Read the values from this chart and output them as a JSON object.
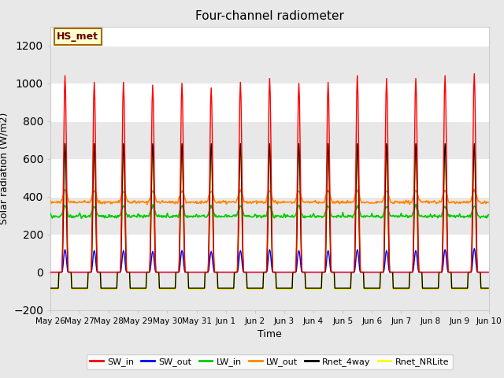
{
  "title": "Four-channel radiometer",
  "xlabel": "Time",
  "ylabel": "Solar radiation (W/m2)",
  "ylim": [
    -200,
    1300
  ],
  "yticks": [
    -200,
    0,
    200,
    400,
    600,
    800,
    1000,
    1200
  ],
  "n_days": 15,
  "fig_bg_color": "#e8e8e8",
  "plot_bg_color": "#ffffff",
  "annotation_text": "HS_met",
  "annotation_bg": "#ffffcc",
  "annotation_border": "#aa6600",
  "colors": {
    "SW_in": "#ff0000",
    "SW_out": "#0000ff",
    "LW_in": "#00cc00",
    "LW_out": "#ff8800",
    "Rnet_4way": "#000000",
    "Rnet_NRLite": "#ffff00"
  },
  "legend_items": [
    "SW_in",
    "SW_out",
    "LW_in",
    "LW_out",
    "Rnet_4way",
    "Rnet_NRLite"
  ],
  "tick_labels": [
    "May 26",
    "May 27",
    "May 28",
    "May 29",
    "May 30",
    "May 31",
    "Jun 1",
    "Jun 2",
    "Jun 3",
    "Jun 4",
    "Jun 5",
    "Jun 6",
    "Jun 7",
    "Jun 8",
    "Jun 9",
    "Jun 10"
  ],
  "SW_in_peaks": [
    1040,
    1005,
    1005,
    990,
    1000,
    975,
    1005,
    1025,
    1000,
    1005,
    1040,
    1025,
    1025,
    1040,
    1050
  ],
  "SW_out_peaks": [
    120,
    115,
    115,
    110,
    115,
    110,
    115,
    120,
    115,
    115,
    120,
    115,
    115,
    120,
    125
  ],
  "LW_out_base": 370,
  "LW_out_day_add": 60,
  "LW_in_base": 295,
  "LW_in_day_add": 55,
  "Rnet_peak": 680,
  "Rnet_night": -85
}
